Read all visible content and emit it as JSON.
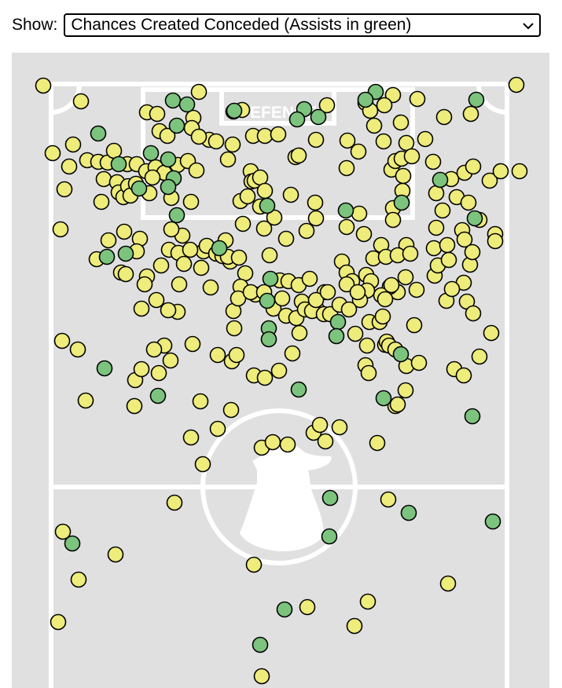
{
  "filter": {
    "label": "Show:",
    "selected": "Chances Created Conceded (Assists in green)"
  },
  "pitch": {
    "defence_text": "DEFENCE",
    "colors": {
      "chance": "#eeec7a",
      "assist": "#7cc47e",
      "pitch": "#e0e0e0",
      "lines": "#ffffff"
    }
  },
  "chart_data": {
    "type": "scatter",
    "series": [
      {
        "name": "Chances Created Conceded",
        "color": "#eeec7a"
      },
      {
        "name": "Assists",
        "color": "#7cc47e"
      }
    ]
  }
}
